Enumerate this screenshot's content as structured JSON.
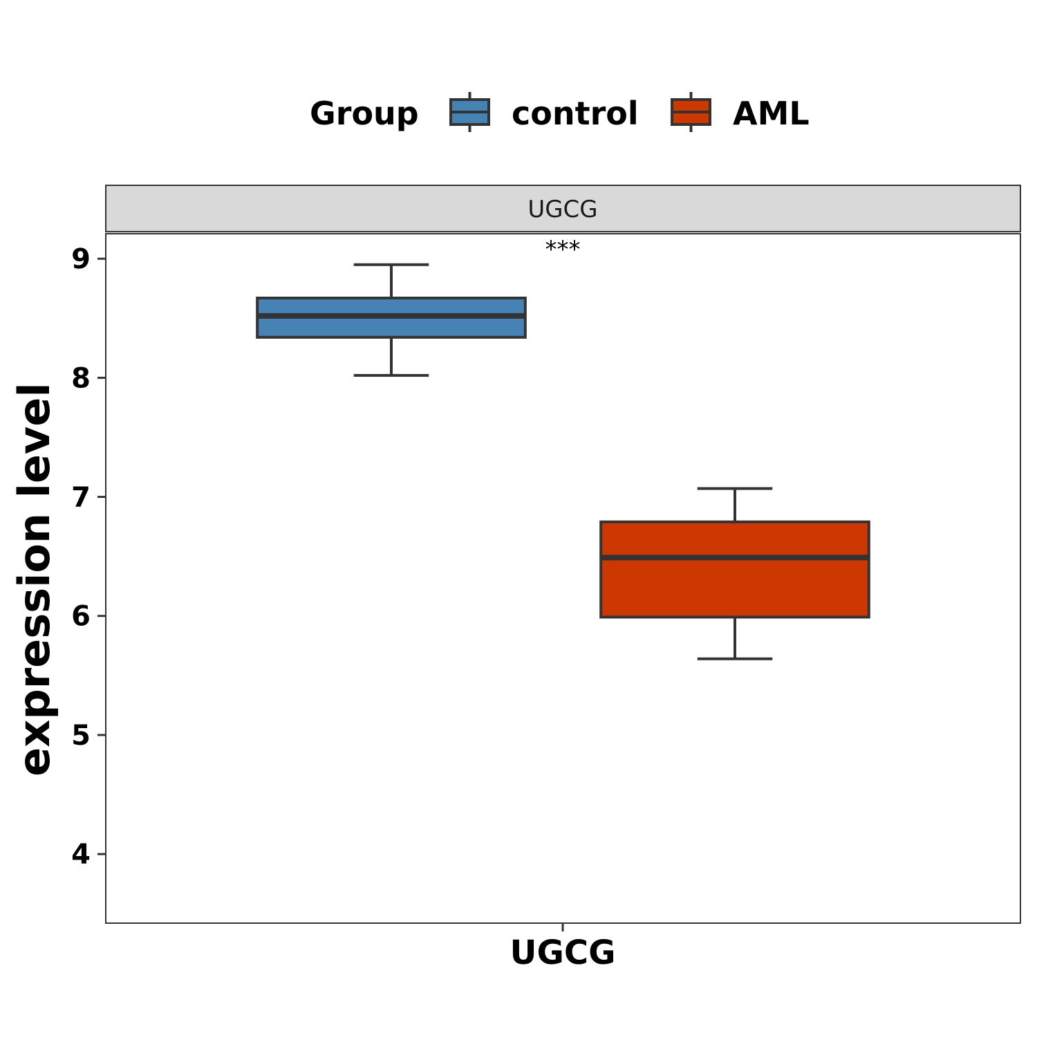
{
  "chart_data": {
    "type": "boxplot",
    "legend": {
      "title": "Group",
      "position": "top",
      "entries": [
        {
          "name": "control",
          "color": "#4682B4"
        },
        {
          "name": "AML",
          "color": "#CD3700"
        }
      ]
    },
    "facet_label": "UGCG",
    "categories": [
      "UGCG"
    ],
    "ylabel": "expression level",
    "xlabel": "",
    "ylim": [
      3.42,
      9.21
    ],
    "yticks": [
      4,
      5,
      6,
      7,
      8,
      9
    ],
    "grid": false,
    "significance": "***",
    "series": [
      {
        "name": "control",
        "color": "#4682B4",
        "whisker_low": 8.02,
        "q1": 8.34,
        "median": 8.52,
        "q3": 8.67,
        "whisker_high": 8.95
      },
      {
        "name": "AML",
        "color": "#CD3700",
        "whisker_low": 5.64,
        "q1": 5.99,
        "median": 6.49,
        "q3": 6.79,
        "whisker_high": 7.07
      }
    ],
    "outline_color": "#333333",
    "panel_border_color": "#333333",
    "strip_fill": "#D9D9D9"
  }
}
